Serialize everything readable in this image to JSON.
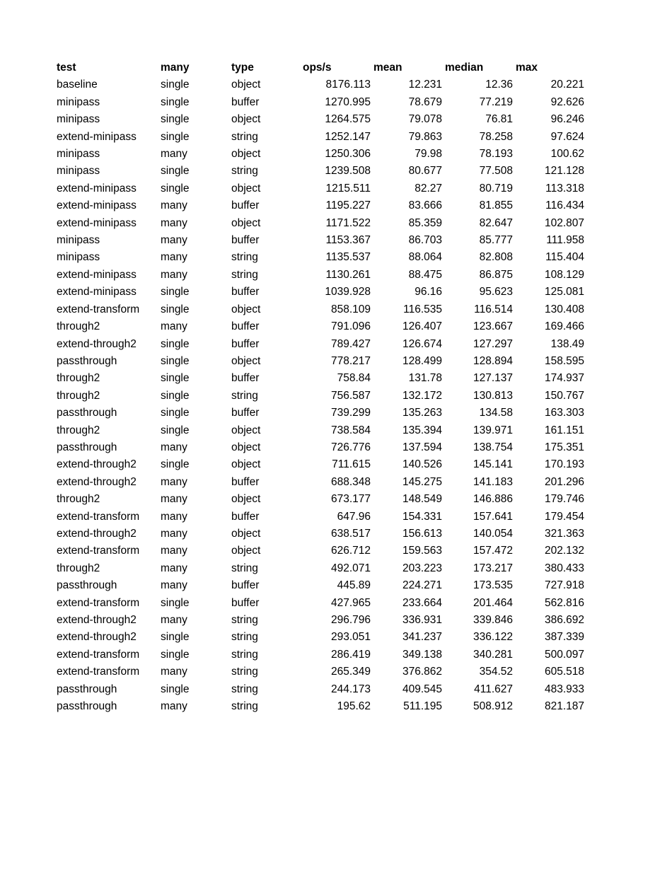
{
  "columns": [
    "test",
    "many",
    "type",
    "ops/s",
    "mean",
    "median",
    "max"
  ],
  "rows": [
    [
      "baseline",
      "single",
      "object",
      "8176.113",
      "12.231",
      "12.36",
      "20.221"
    ],
    [
      "minipass",
      "single",
      "buffer",
      "1270.995",
      "78.679",
      "77.219",
      "92.626"
    ],
    [
      "minipass",
      "single",
      "object",
      "1264.575",
      "79.078",
      "76.81",
      "96.246"
    ],
    [
      "extend-minipass",
      "single",
      "string",
      "1252.147",
      "79.863",
      "78.258",
      "97.624"
    ],
    [
      "minipass",
      "many",
      "object",
      "1250.306",
      "79.98",
      "78.193",
      "100.62"
    ],
    [
      "minipass",
      "single",
      "string",
      "1239.508",
      "80.677",
      "77.508",
      "121.128"
    ],
    [
      "extend-minipass",
      "single",
      "object",
      "1215.511",
      "82.27",
      "80.719",
      "113.318"
    ],
    [
      "extend-minipass",
      "many",
      "buffer",
      "1195.227",
      "83.666",
      "81.855",
      "116.434"
    ],
    [
      "extend-minipass",
      "many",
      "object",
      "1171.522",
      "85.359",
      "82.647",
      "102.807"
    ],
    [
      "minipass",
      "many",
      "buffer",
      "1153.367",
      "86.703",
      "85.777",
      "111.958"
    ],
    [
      "minipass",
      "many",
      "string",
      "1135.537",
      "88.064",
      "82.808",
      "115.404"
    ],
    [
      "extend-minipass",
      "many",
      "string",
      "1130.261",
      "88.475",
      "86.875",
      "108.129"
    ],
    [
      "extend-minipass",
      "single",
      "buffer",
      "1039.928",
      "96.16",
      "95.623",
      "125.081"
    ],
    [
      "extend-transform",
      "single",
      "object",
      "858.109",
      "116.535",
      "116.514",
      "130.408"
    ],
    [
      "through2",
      "many",
      "buffer",
      "791.096",
      "126.407",
      "123.667",
      "169.466"
    ],
    [
      "extend-through2",
      "single",
      "buffer",
      "789.427",
      "126.674",
      "127.297",
      "138.49"
    ],
    [
      "passthrough",
      "single",
      "object",
      "778.217",
      "128.499",
      "128.894",
      "158.595"
    ],
    [
      "through2",
      "single",
      "buffer",
      "758.84",
      "131.78",
      "127.137",
      "174.937"
    ],
    [
      "through2",
      "single",
      "string",
      "756.587",
      "132.172",
      "130.813",
      "150.767"
    ],
    [
      "passthrough",
      "single",
      "buffer",
      "739.299",
      "135.263",
      "134.58",
      "163.303"
    ],
    [
      "through2",
      "single",
      "object",
      "738.584",
      "135.394",
      "139.971",
      "161.151"
    ],
    [
      "passthrough",
      "many",
      "object",
      "726.776",
      "137.594",
      "138.754",
      "175.351"
    ],
    [
      "extend-through2",
      "single",
      "object",
      "711.615",
      "140.526",
      "145.141",
      "170.193"
    ],
    [
      "extend-through2",
      "many",
      "buffer",
      "688.348",
      "145.275",
      "141.183",
      "201.296"
    ],
    [
      "through2",
      "many",
      "object",
      "673.177",
      "148.549",
      "146.886",
      "179.746"
    ],
    [
      "extend-transform",
      "many",
      "buffer",
      "647.96",
      "154.331",
      "157.641",
      "179.454"
    ],
    [
      "extend-through2",
      "many",
      "object",
      "638.517",
      "156.613",
      "140.054",
      "321.363"
    ],
    [
      "extend-transform",
      "many",
      "object",
      "626.712",
      "159.563",
      "157.472",
      "202.132"
    ],
    [
      "through2",
      "many",
      "string",
      "492.071",
      "203.223",
      "173.217",
      "380.433"
    ],
    [
      "passthrough",
      "many",
      "buffer",
      "445.89",
      "224.271",
      "173.535",
      "727.918"
    ],
    [
      "extend-transform",
      "single",
      "buffer",
      "427.965",
      "233.664",
      "201.464",
      "562.816"
    ],
    [
      "extend-through2",
      "many",
      "string",
      "296.796",
      "336.931",
      "339.846",
      "386.692"
    ],
    [
      "extend-through2",
      "single",
      "string",
      "293.051",
      "341.237",
      "336.122",
      "387.339"
    ],
    [
      "extend-transform",
      "single",
      "string",
      "286.419",
      "349.138",
      "340.281",
      "500.097"
    ],
    [
      "extend-transform",
      "many",
      "string",
      "265.349",
      "376.862",
      "354.52",
      "605.518"
    ],
    [
      "passthrough",
      "single",
      "string",
      "244.173",
      "409.545",
      "411.627",
      "483.933"
    ],
    [
      "passthrough",
      "many",
      "string",
      "195.62",
      "511.195",
      "508.912",
      "821.187"
    ]
  ]
}
